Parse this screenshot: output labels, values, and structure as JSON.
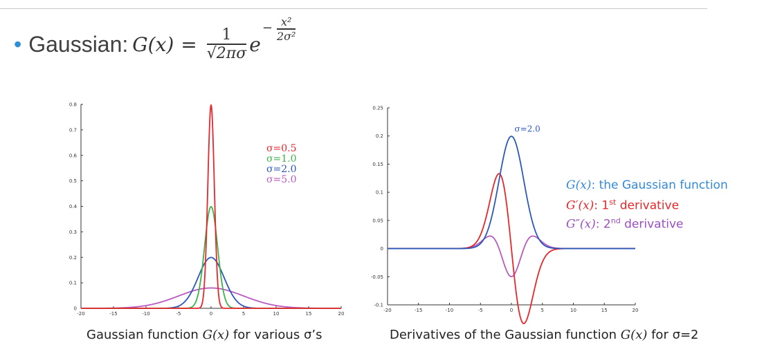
{
  "header": {
    "bullet_label": "Gaussian:",
    "formula": {
      "lhs": "G(x)",
      "equals": "=",
      "numerator": "1",
      "denominator": "√2πσ",
      "base": "e",
      "exp_sign": "−",
      "exp_num": "x²",
      "exp_den": "2σ²"
    }
  },
  "colors": {
    "red": "#e8262a",
    "green": "#3cb34a",
    "blue": "#2b57b8",
    "purple": "#b85ac0",
    "anno_blue": "#3389d6",
    "anno_red": "#e8262a",
    "anno_purple": "#9b4fc0"
  },
  "chart_data": [
    {
      "type": "line",
      "title": "",
      "xlim": [
        -20,
        20
      ],
      "ylim": [
        0,
        0.8
      ],
      "x_ticks": [
        "-20",
        "-15",
        "-10",
        "-5",
        "0",
        "5",
        "10",
        "15",
        "20"
      ],
      "y_ticks": [
        "0",
        "0.1",
        "0.2",
        "0.3",
        "0.4",
        "0.5",
        "0.6",
        "0.7",
        "0.8"
      ],
      "series": [
        {
          "name": "σ=0.5",
          "sigma": 0.5,
          "color": "#e8262a"
        },
        {
          "name": "σ=1.0",
          "sigma": 1.0,
          "color": "#3cb34a"
        },
        {
          "name": "σ=2.0",
          "sigma": 2.0,
          "color": "#2b57b8"
        },
        {
          "name": "σ=5.0",
          "sigma": 5.0,
          "color": "#b85ac0"
        }
      ],
      "legend": "top-right",
      "caption": {
        "prefix": "Gaussian function ",
        "math": "G(x)",
        "suffix": " for various σ’s"
      }
    },
    {
      "type": "line",
      "title": "",
      "xlim": [
        -20,
        20
      ],
      "ylim": [
        -0.1,
        0.25
      ],
      "x_ticks": [
        "-20",
        "-15",
        "-10",
        "-5",
        "0",
        "5",
        "10",
        "15",
        "20"
      ],
      "y_ticks": [
        "-0.1",
        "-0.05",
        "0",
        "0.05",
        "0.1",
        "0.15",
        "0.2",
        "0.25"
      ],
      "sigma": 2.0,
      "peak_label": "σ=2.0",
      "series": [
        {
          "name": "G(x): the Gaussian function",
          "kind": "gaussian",
          "color": "#2b57b8"
        },
        {
          "name": "G′(x): 1st derivative",
          "kind": "first_derivative",
          "color": "#e8262a"
        },
        {
          "name": "G″(x): 2nd derivative",
          "kind": "second_derivative",
          "color": "#b85ac0"
        }
      ],
      "annotations": {
        "g": {
          "math": "G(x)",
          "text": ": the Gaussian function"
        },
        "g1": {
          "math": "G′(x)",
          "text": ": 1",
          "sup": "st",
          "text2": " derivative"
        },
        "g2": {
          "math": "G″(x)",
          "text": ": 2",
          "sup": "nd",
          "text2": " derivative"
        }
      },
      "caption": {
        "prefix": "Derivatives of the Gaussian function ",
        "math": "G(x)",
        "suffix": " for σ=2"
      }
    }
  ]
}
